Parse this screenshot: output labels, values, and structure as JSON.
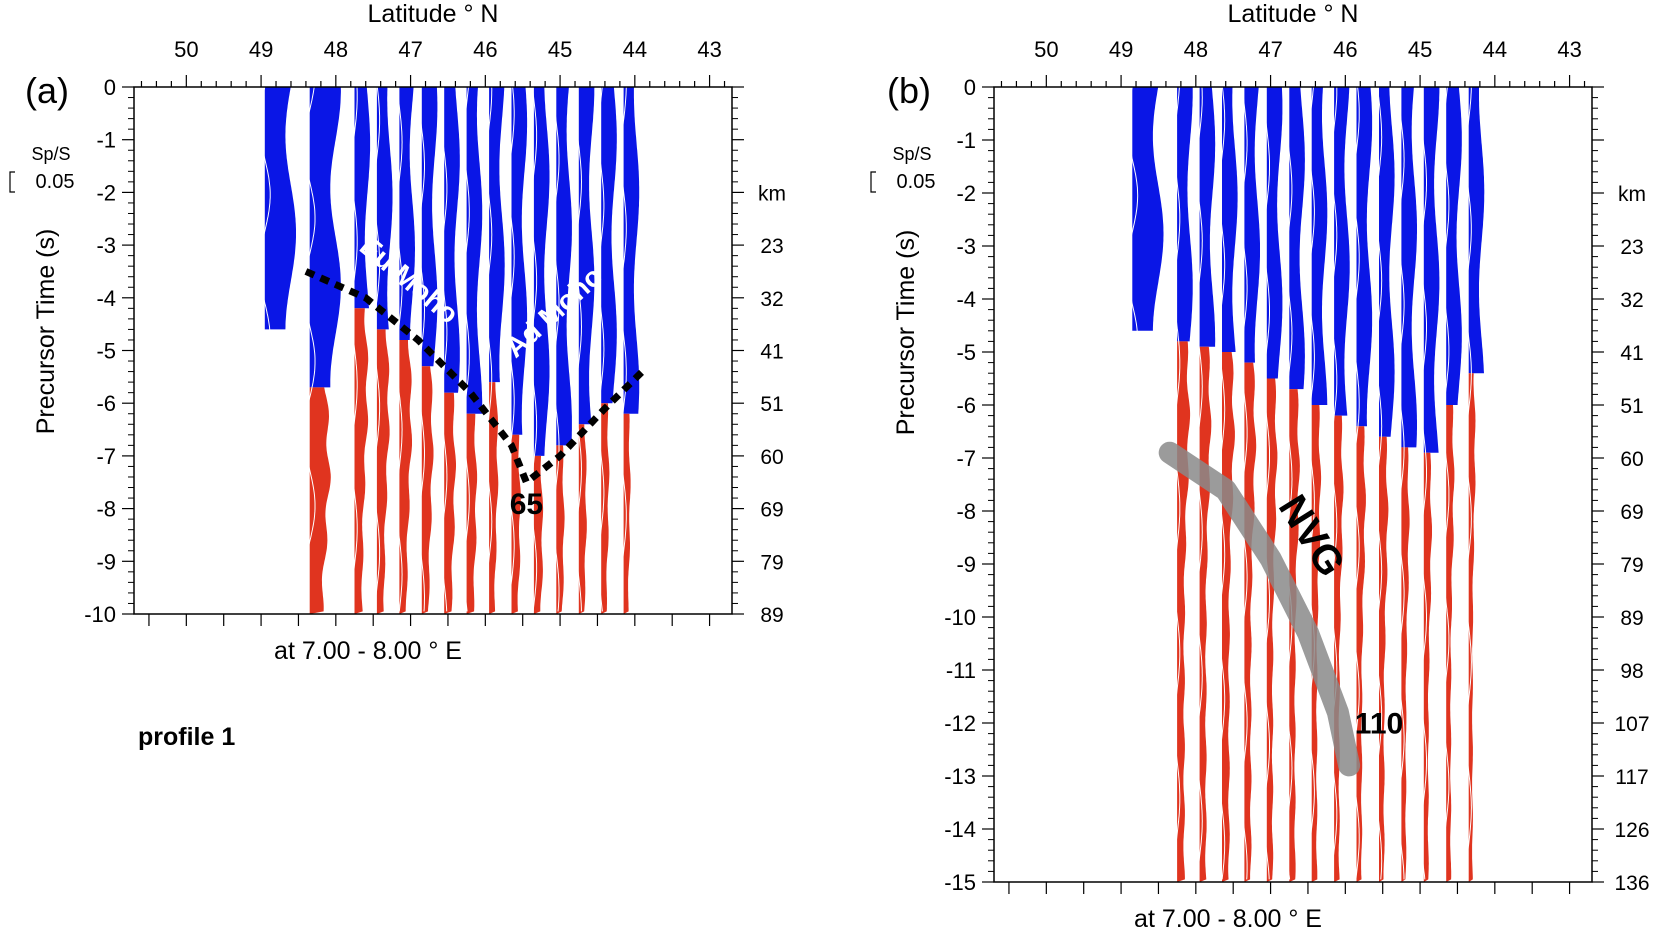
{
  "figure_label_text": "profile 1",
  "colors": {
    "positive": "#e0341f",
    "negative": "#0a16e6",
    "nvg": "#8a8a8a",
    "moho_line": "#000000",
    "grid": "#000000"
  },
  "chart_data": [
    {
      "type": "wiggle-section",
      "panel_label": "(a)",
      "title": "Latitude ° N",
      "xlabel": "at 7.00 - 8.00 ° E",
      "ylabel": "Precursor Time (s)",
      "xlim": [
        50.7,
        42.7
      ],
      "ylim": [
        -10,
        0
      ],
      "x_ticks": [
        50,
        49,
        48,
        47,
        46,
        45,
        44,
        43
      ],
      "y_ticks": [
        0,
        -1,
        -2,
        -3,
        -4,
        -5,
        -6,
        -7,
        -8,
        -9,
        -10
      ],
      "right_axis_label": "km",
      "right_ticks": [
        {
          "t": -3,
          "km": "23"
        },
        {
          "t": -4,
          "km": "32"
        },
        {
          "t": -5,
          "km": "41"
        },
        {
          "t": -6,
          "km": "51"
        },
        {
          "t": -7,
          "km": "60"
        },
        {
          "t": -8,
          "km": "69"
        },
        {
          "t": -9,
          "km": "79"
        },
        {
          "t": -10,
          "km": "89"
        }
      ],
      "scale_label": "Sp/S",
      "scale_value": "0.05",
      "traces": [
        {
          "lat": 48.95,
          "cross": -4.6,
          "red_peak": 0.0
        },
        {
          "lat": 48.35,
          "cross": -5.7,
          "red_peak": 0.45
        },
        {
          "lat": 47.75,
          "cross": -4.2,
          "red_peak": 0.6
        },
        {
          "lat": 47.45,
          "cross": -4.6,
          "red_peak": 0.55
        },
        {
          "lat": 47.15,
          "cross": -4.8,
          "red_peak": 0.55
        },
        {
          "lat": 46.85,
          "cross": -5.3,
          "red_peak": 0.5
        },
        {
          "lat": 46.55,
          "cross": -5.8,
          "red_peak": 0.5
        },
        {
          "lat": 46.25,
          "cross": -6.2,
          "red_peak": 0.45
        },
        {
          "lat": 45.95,
          "cross": -5.6,
          "red_peak": 0.4
        },
        {
          "lat": 45.65,
          "cross": -6.6,
          "red_peak": 0.4
        },
        {
          "lat": 45.35,
          "cross": -7.0,
          "red_peak": 0.4
        },
        {
          "lat": 45.05,
          "cross": -6.8,
          "red_peak": 0.35
        },
        {
          "lat": 44.75,
          "cross": -6.4,
          "red_peak": 0.35
        },
        {
          "lat": 44.45,
          "cross": -6.0,
          "red_peak": 0.35
        },
        {
          "lat": 44.15,
          "cross": -6.2,
          "red_peak": 0.3
        }
      ],
      "annotations": [
        {
          "text": "Eu Moho",
          "lat": 47.1,
          "t": -3.8,
          "rotate": 40
        },
        {
          "text": "Ad Moho",
          "lat": 45.0,
          "t": -4.4,
          "rotate": -42
        },
        {
          "text": "65",
          "lat": 45.45,
          "t": -8.1,
          "rotate": 0
        }
      ],
      "moho_line": [
        [
          48.4,
          -3.5
        ],
        [
          47.6,
          -4.0
        ],
        [
          46.9,
          -4.8
        ],
        [
          46.2,
          -5.8
        ],
        [
          45.65,
          -6.8
        ],
        [
          45.45,
          -7.5
        ],
        [
          45.0,
          -7.0
        ],
        [
          44.4,
          -6.1
        ],
        [
          43.9,
          -5.4
        ]
      ]
    },
    {
      "type": "wiggle-section",
      "panel_label": "(b)",
      "title": "Latitude ° N",
      "xlabel": "at 7.00 - 8.00 ° E",
      "ylabel": "Precursor Time (s)",
      "xlim": [
        50.7,
        42.7
      ],
      "ylim": [
        -15,
        0
      ],
      "x_ticks": [
        50,
        49,
        48,
        47,
        46,
        45,
        44,
        43
      ],
      "y_ticks": [
        0,
        -1,
        -2,
        -3,
        -4,
        -5,
        -6,
        -7,
        -8,
        -9,
        -10,
        -11,
        -12,
        -13,
        -14,
        -15
      ],
      "right_axis_label": "km",
      "right_ticks": [
        {
          "t": -3,
          "km": "23"
        },
        {
          "t": -4,
          "km": "32"
        },
        {
          "t": -5,
          "km": "41"
        },
        {
          "t": -6,
          "km": "51"
        },
        {
          "t": -7,
          "km": "60"
        },
        {
          "t": -8,
          "km": "69"
        },
        {
          "t": -9,
          "km": "79"
        },
        {
          "t": -10,
          "km": "89"
        },
        {
          "t": -11,
          "km": "98"
        },
        {
          "t": -12,
          "km": "107"
        },
        {
          "t": -13,
          "km": "117"
        },
        {
          "t": -14,
          "km": "126"
        },
        {
          "t": -15,
          "km": "136"
        }
      ],
      "scale_label": "Sp/S",
      "scale_value": "0.05",
      "traces": [
        {
          "lat": 48.85,
          "cross": -4.6,
          "red_peak": 0.0
        },
        {
          "lat": 48.25,
          "cross": -4.8,
          "red_peak": 0.55
        },
        {
          "lat": 47.95,
          "cross": -4.9,
          "red_peak": 0.5
        },
        {
          "lat": 47.65,
          "cross": -5.0,
          "red_peak": 0.55
        },
        {
          "lat": 47.35,
          "cross": -5.2,
          "red_peak": 0.5
        },
        {
          "lat": 47.05,
          "cross": -5.5,
          "red_peak": 0.45
        },
        {
          "lat": 46.75,
          "cross": -5.7,
          "red_peak": 0.45
        },
        {
          "lat": 46.45,
          "cross": -6.0,
          "red_peak": 0.4
        },
        {
          "lat": 46.15,
          "cross": -6.2,
          "red_peak": 0.4
        },
        {
          "lat": 45.85,
          "cross": -6.4,
          "red_peak": 0.4
        },
        {
          "lat": 45.55,
          "cross": -6.6,
          "red_peak": 0.4
        },
        {
          "lat": 45.25,
          "cross": -6.8,
          "red_peak": 0.35
        },
        {
          "lat": 44.95,
          "cross": -6.9,
          "red_peak": 0.35
        },
        {
          "lat": 44.65,
          "cross": -6.0,
          "red_peak": 0.35
        },
        {
          "lat": 44.35,
          "cross": -5.4,
          "red_peak": 0.3
        }
      ],
      "annotations": [
        {
          "text": "NVG",
          "lat": 46.6,
          "t": -8.6,
          "rotate": 58
        },
        {
          "text": "110",
          "lat": 45.55,
          "t": -12.2,
          "rotate": 0
        }
      ],
      "nvg_band": [
        [
          48.35,
          -6.9
        ],
        [
          47.6,
          -7.6
        ],
        [
          47.0,
          -8.9
        ],
        [
          46.5,
          -10.3
        ],
        [
          46.1,
          -11.8
        ],
        [
          45.95,
          -12.8
        ]
      ]
    }
  ]
}
